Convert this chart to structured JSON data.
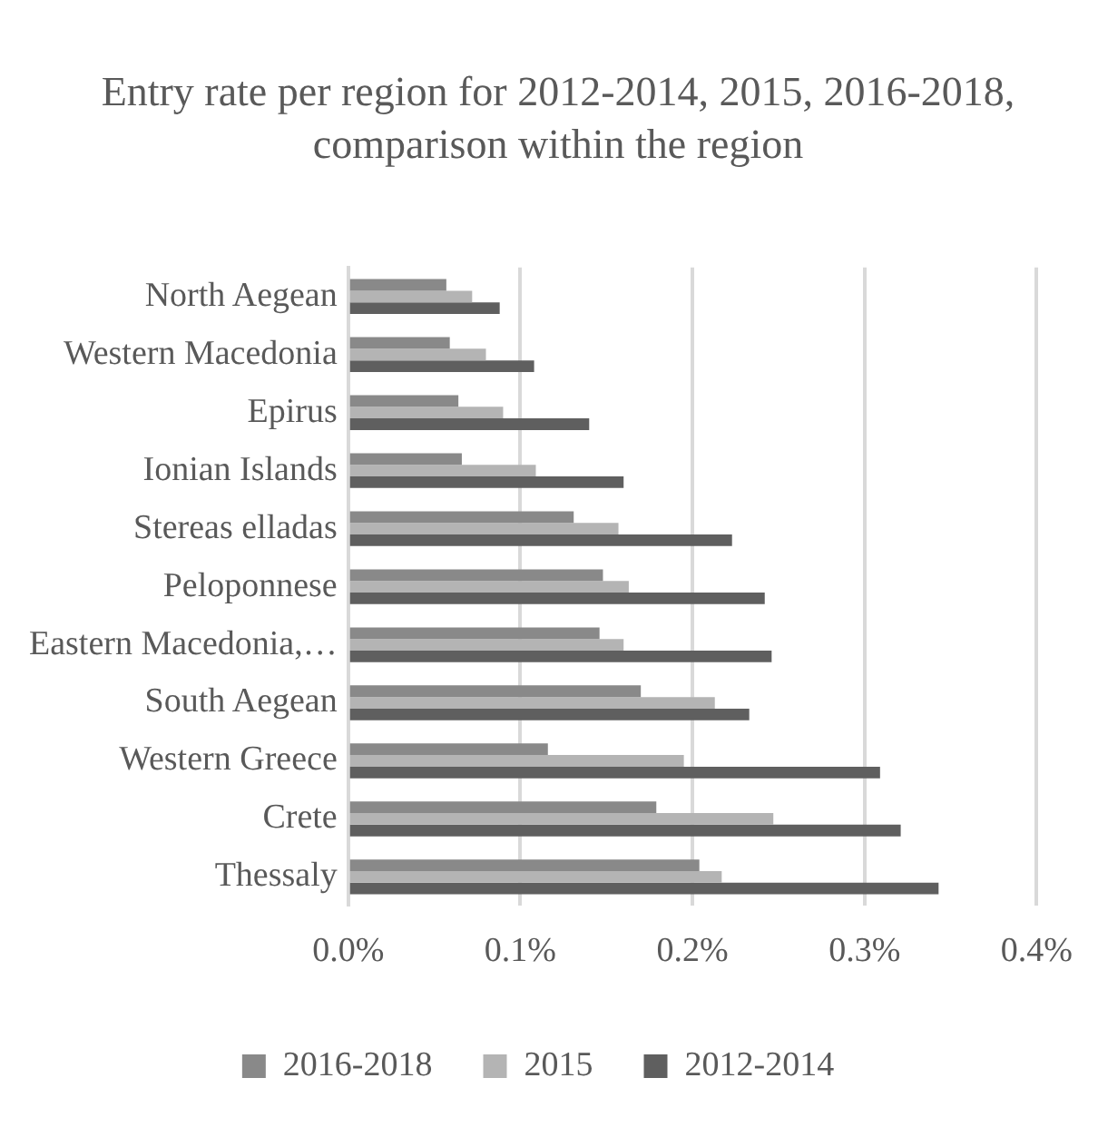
{
  "chart_data": {
    "type": "bar",
    "orientation": "horizontal",
    "title": "Entry rate per region for 2012-2014, 2015, 2016-2018, comparison within the region",
    "categories": [
      "North Aegean",
      "Western Macedonia",
      "Epirus",
      "Ionian Islands",
      "Stereas elladas",
      "Peloponnese",
      "Eastern Macedonia,…",
      "South Aegean",
      "Western Greece",
      "Crete",
      "Thessaly"
    ],
    "series": [
      {
        "name": "2016-2018",
        "color": "#898989",
        "values": [
          0.057,
          0.059,
          0.064,
          0.066,
          0.131,
          0.148,
          0.146,
          0.17,
          0.116,
          0.179,
          0.204
        ]
      },
      {
        "name": "2015",
        "color": "#b4b4b4",
        "values": [
          0.072,
          0.08,
          0.09,
          0.109,
          0.157,
          0.163,
          0.16,
          0.213,
          0.195,
          0.247,
          0.217
        ]
      },
      {
        "name": "2012-2014",
        "color": "#5f5f5f",
        "values": [
          0.088,
          0.108,
          0.14,
          0.16,
          0.223,
          0.242,
          0.246,
          0.233,
          0.309,
          0.321,
          0.343
        ]
      }
    ],
    "xlim": [
      0,
      0.4
    ],
    "xticks": [
      {
        "value": 0,
        "label": "0.0%"
      },
      {
        "value": 0.1,
        "label": "0.1%"
      },
      {
        "value": 0.2,
        "label": "0.2%"
      },
      {
        "value": 0.3,
        "label": "0.3%"
      },
      {
        "value": 0.4,
        "label": "0.4%"
      }
    ],
    "grid": "x",
    "legend": "bottom"
  }
}
